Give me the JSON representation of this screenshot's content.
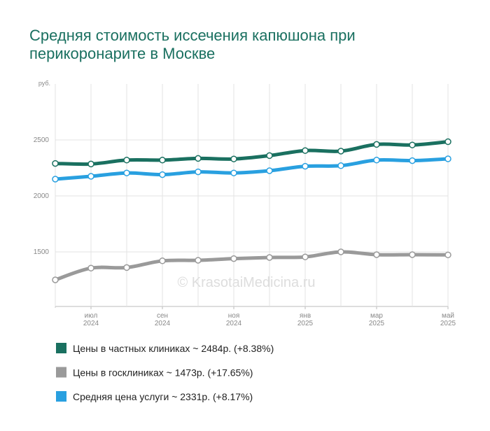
{
  "chart_data": {
    "type": "line",
    "title": "Средняя стоимость иссечения капюшона при перикоронарите в Москве",
    "y_unit": "руб.",
    "watermark": "© KrasotaiMedicina.ru",
    "categories": [
      null,
      "июл 2024",
      null,
      "сен 2024",
      null,
      "ноя 2024",
      null,
      "янв 2025",
      null,
      "мар 2025",
      null,
      "май 2025"
    ],
    "series": [
      {
        "name": "Цены в частных клиниках ~ 2484р. (+8.38%)",
        "color": "#1a7060",
        "values": [
          2290,
          2285,
          2320,
          2320,
          2335,
          2330,
          2360,
          2405,
          2400,
          2460,
          2455,
          2484
        ]
      },
      {
        "name": "Цены в госклиниках ~ 1473р. (+17.65%)",
        "color": "#9a9a9a",
        "values": [
          1250,
          1355,
          1360,
          1420,
          1425,
          1440,
          1450,
          1455,
          1500,
          1475,
          1475,
          1473
        ]
      },
      {
        "name": "Средняя цена услуги ~ 2331р. (+8.17%)",
        "color": "#29a0e0",
        "values": [
          2150,
          2175,
          2205,
          2190,
          2215,
          2205,
          2225,
          2265,
          2270,
          2320,
          2315,
          2331
        ]
      }
    ],
    "ylim": [
      1000,
      3000
    ],
    "yticks": [
      1500,
      2000,
      2500
    ],
    "grid": true
  }
}
